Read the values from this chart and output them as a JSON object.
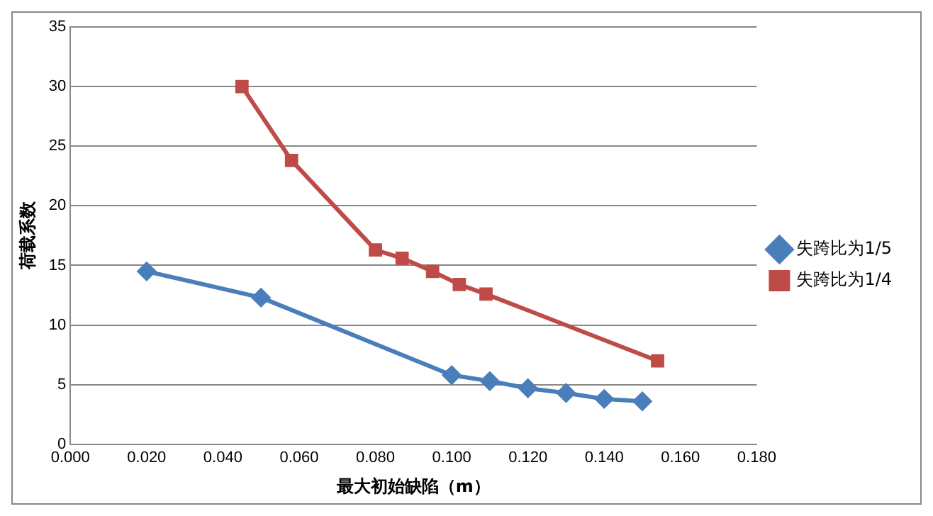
{
  "chart_data": {
    "type": "line",
    "xlabel": "最大初始缺陷（m）",
    "ylabel": "荷载系数",
    "xlim": [
      0,
      0.18
    ],
    "xticks": [
      {
        "value": 0,
        "label": "0.000"
      },
      {
        "value": 0.02,
        "label": "0.020"
      },
      {
        "value": 0.04,
        "label": "0.040"
      },
      {
        "value": 0.06,
        "label": "0.060"
      },
      {
        "value": 0.08,
        "label": "0.080"
      },
      {
        "value": 0.1,
        "label": "0.100"
      },
      {
        "value": 0.12,
        "label": "0.120"
      },
      {
        "value": 0.14,
        "label": "0.140"
      },
      {
        "value": 0.16,
        "label": "0.160"
      },
      {
        "value": 0.18,
        "label": "0.180"
      }
    ],
    "ylim": [
      0,
      35
    ],
    "yticks": [
      0,
      5,
      10,
      15,
      20,
      25,
      30,
      35
    ],
    "grid": "y",
    "legend": "right",
    "series": [
      {
        "name": "失跨比为1/5",
        "color": "#4a7ebb",
        "marker": "diamond",
        "x": [
          0.02,
          0.05,
          0.1,
          0.11,
          0.12,
          0.13,
          0.14,
          0.15
        ],
        "values": [
          14.5,
          12.3,
          5.8,
          5.3,
          4.7,
          4.3,
          3.8,
          3.6
        ]
      },
      {
        "name": "失跨比为1/4",
        "color": "#be4b48",
        "marker": "square",
        "x": [
          0.045,
          0.058,
          0.08,
          0.087,
          0.095,
          0.102,
          0.109,
          0.154
        ],
        "values": [
          30.0,
          23.8,
          16.3,
          15.6,
          14.5,
          13.4,
          12.6,
          7.0
        ]
      }
    ]
  }
}
